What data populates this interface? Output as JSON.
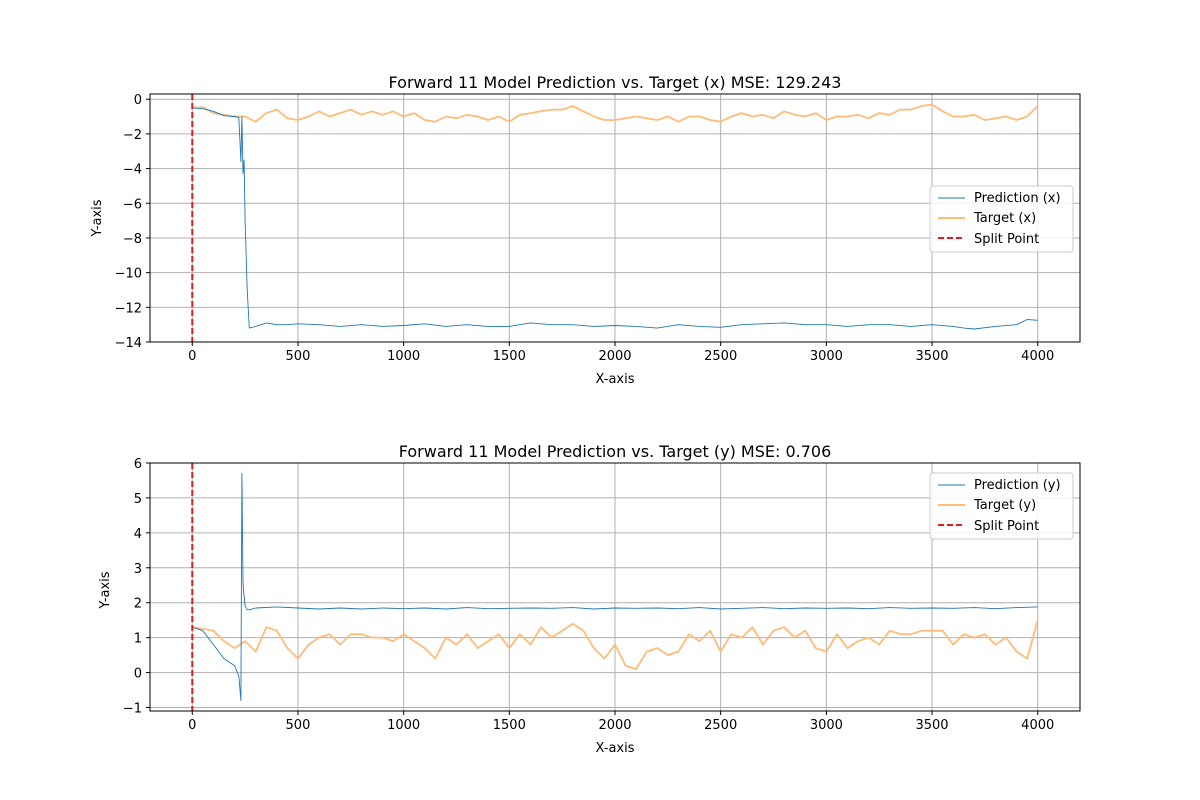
{
  "chart_data": [
    {
      "type": "line",
      "title": "Forward 11 Model Prediction vs. Target (x) MSE: 129.243",
      "xlabel": "X-axis",
      "ylabel": "Y-axis",
      "xlim": [
        -200,
        4200
      ],
      "ylim": [
        -14,
        0.3
      ],
      "xticks": [
        0,
        500,
        1000,
        1500,
        2000,
        2500,
        3000,
        3500,
        4000
      ],
      "yticks": [
        0,
        -2,
        -4,
        -6,
        -8,
        -10,
        -12,
        -14
      ],
      "ytick_labels": [
        "0",
        "−2",
        "−4",
        "−6",
        "−8",
        "−10",
        "−12",
        "−14"
      ],
      "grid": true,
      "legend": "center-right",
      "split_point": 0,
      "series": [
        {
          "name": "Prediction (x)",
          "color": "#1f77b4",
          "x": [
            0,
            50,
            100,
            150,
            200,
            220,
            230,
            235,
            240,
            245,
            250,
            260,
            270,
            300,
            350,
            400,
            450,
            500,
            600,
            700,
            800,
            900,
            1000,
            1100,
            1200,
            1300,
            1400,
            1500,
            1600,
            1700,
            1800,
            1900,
            2000,
            2100,
            2200,
            2300,
            2400,
            2500,
            2600,
            2700,
            2800,
            2900,
            3000,
            3100,
            3200,
            3300,
            3400,
            3500,
            3600,
            3650,
            3700,
            3800,
            3900,
            3950,
            4000
          ],
          "y": [
            -0.5,
            -0.55,
            -0.7,
            -0.95,
            -1.0,
            -1.05,
            -3.6,
            -1.0,
            -4.3,
            -3.5,
            -7.0,
            -11.0,
            -13.2,
            -13.1,
            -12.9,
            -13.0,
            -13.0,
            -12.95,
            -13.0,
            -13.1,
            -13.0,
            -13.1,
            -13.05,
            -12.95,
            -13.1,
            -13.0,
            -13.1,
            -13.1,
            -12.9,
            -13.0,
            -13.0,
            -13.1,
            -13.05,
            -13.1,
            -13.2,
            -13.0,
            -13.1,
            -13.15,
            -13.0,
            -12.95,
            -12.9,
            -13.0,
            -13.0,
            -13.1,
            -13.0,
            -13.0,
            -13.1,
            -13.0,
            -13.1,
            -13.2,
            -13.25,
            -13.1,
            -13.0,
            -12.7,
            -12.75
          ]
        },
        {
          "name": "Target (x)",
          "color": "#ffbb78",
          "x": [
            0,
            50,
            100,
            150,
            200,
            250,
            300,
            350,
            400,
            450,
            500,
            550,
            600,
            650,
            700,
            750,
            800,
            850,
            900,
            950,
            1000,
            1050,
            1100,
            1150,
            1200,
            1250,
            1300,
            1350,
            1400,
            1450,
            1500,
            1550,
            1600,
            1650,
            1700,
            1750,
            1800,
            1850,
            1900,
            1950,
            2000,
            2050,
            2100,
            2150,
            2200,
            2250,
            2300,
            2350,
            2400,
            2450,
            2500,
            2550,
            2600,
            2650,
            2700,
            2750,
            2800,
            2850,
            2900,
            2950,
            3000,
            3050,
            3100,
            3150,
            3200,
            3250,
            3300,
            3350,
            3400,
            3450,
            3500,
            3550,
            3600,
            3650,
            3700,
            3750,
            3800,
            3850,
            3900,
            3950,
            4000
          ],
          "y": [
            -0.5,
            -0.45,
            -0.8,
            -0.9,
            -1.0,
            -1.0,
            -1.3,
            -0.8,
            -0.6,
            -1.1,
            -1.2,
            -1.0,
            -0.7,
            -1.0,
            -0.8,
            -0.6,
            -0.9,
            -0.7,
            -0.9,
            -0.7,
            -1.0,
            -0.8,
            -1.2,
            -1.3,
            -1.0,
            -1.1,
            -0.9,
            -1.0,
            -1.2,
            -1.0,
            -1.3,
            -0.9,
            -0.8,
            -0.7,
            -0.6,
            -0.6,
            -0.4,
            -0.7,
            -1.0,
            -1.2,
            -1.2,
            -1.1,
            -1.0,
            -1.1,
            -1.2,
            -1.0,
            -1.3,
            -1.0,
            -1.0,
            -1.2,
            -1.3,
            -1.0,
            -0.8,
            -1.0,
            -0.9,
            -1.1,
            -0.7,
            -0.9,
            -1.0,
            -0.8,
            -1.2,
            -1.0,
            -1.0,
            -0.9,
            -1.1,
            -0.8,
            -0.9,
            -0.6,
            -0.6,
            -0.4,
            -0.3,
            -0.7,
            -1.0,
            -1.0,
            -0.9,
            -1.2,
            -1.1,
            -1.0,
            -1.2,
            -1.0,
            -0.4
          ]
        }
      ]
    },
    {
      "type": "line",
      "title": "Forward 11 Model Prediction vs. Target (y) MSE: 0.706",
      "xlabel": "X-axis",
      "ylabel": "Y-axis",
      "xlim": [
        -200,
        4200
      ],
      "ylim": [
        -1.1,
        6
      ],
      "xticks": [
        0,
        500,
        1000,
        1500,
        2000,
        2500,
        3000,
        3500,
        4000
      ],
      "yticks": [
        -1,
        0,
        1,
        2,
        3,
        4,
        5,
        6
      ],
      "ytick_labels": [
        "−1",
        "0",
        "1",
        "2",
        "3",
        "4",
        "5",
        "6"
      ],
      "grid": true,
      "legend": "upper-right",
      "split_point": 0,
      "series": [
        {
          "name": "Prediction (y)",
          "color": "#1f77b4",
          "x": [
            0,
            50,
            100,
            150,
            200,
            220,
            230,
            235,
            240,
            243,
            245,
            250,
            260,
            270,
            300,
            400,
            500,
            600,
            700,
            800,
            900,
            1000,
            1100,
            1200,
            1300,
            1400,
            1500,
            1600,
            1700,
            1800,
            1900,
            2000,
            2100,
            2200,
            2300,
            2400,
            2500,
            2600,
            2700,
            2800,
            2900,
            3000,
            3100,
            3200,
            3300,
            3400,
            3500,
            3600,
            3700,
            3800,
            3900,
            4000
          ],
          "y": [
            1.3,
            1.2,
            0.8,
            0.4,
            0.2,
            -0.1,
            -0.8,
            5.7,
            2.6,
            2.3,
            2.2,
            1.9,
            1.8,
            1.8,
            1.85,
            1.88,
            1.85,
            1.82,
            1.85,
            1.82,
            1.85,
            1.83,
            1.85,
            1.82,
            1.86,
            1.83,
            1.84,
            1.85,
            1.84,
            1.86,
            1.82,
            1.85,
            1.84,
            1.85,
            1.83,
            1.86,
            1.82,
            1.84,
            1.86,
            1.83,
            1.85,
            1.84,
            1.85,
            1.83,
            1.86,
            1.84,
            1.85,
            1.84,
            1.86,
            1.83,
            1.86,
            1.88
          ]
        },
        {
          "name": "Target (y)",
          "color": "#ffbb78",
          "x": [
            0,
            50,
            100,
            150,
            200,
            250,
            300,
            350,
            400,
            450,
            500,
            550,
            600,
            650,
            700,
            750,
            800,
            850,
            900,
            950,
            1000,
            1050,
            1100,
            1150,
            1200,
            1250,
            1300,
            1350,
            1400,
            1450,
            1500,
            1550,
            1600,
            1650,
            1700,
            1750,
            1800,
            1850,
            1900,
            1950,
            2000,
            2050,
            2100,
            2150,
            2200,
            2250,
            2300,
            2350,
            2400,
            2450,
            2500,
            2550,
            2600,
            2650,
            2700,
            2750,
            2800,
            2850,
            2900,
            2950,
            3000,
            3050,
            3100,
            3150,
            3200,
            3250,
            3300,
            3350,
            3400,
            3450,
            3500,
            3550,
            3600,
            3650,
            3700,
            3750,
            3800,
            3850,
            3900,
            3950,
            4000
          ],
          "y": [
            1.3,
            1.25,
            1.2,
            0.9,
            0.7,
            0.9,
            0.6,
            1.3,
            1.2,
            0.7,
            0.4,
            0.8,
            1.0,
            1.1,
            0.8,
            1.1,
            1.1,
            1.0,
            1.0,
            0.9,
            1.1,
            0.9,
            0.7,
            0.4,
            1.0,
            0.8,
            1.1,
            0.7,
            0.9,
            1.1,
            0.7,
            1.1,
            0.8,
            1.3,
            1.0,
            1.2,
            1.4,
            1.2,
            0.7,
            0.4,
            0.8,
            0.2,
            0.1,
            0.6,
            0.7,
            0.5,
            0.6,
            1.1,
            0.9,
            1.2,
            0.6,
            1.1,
            1.0,
            1.3,
            0.8,
            1.2,
            1.3,
            1.0,
            1.2,
            0.7,
            0.6,
            1.1,
            0.7,
            0.9,
            1.0,
            0.8,
            1.2,
            1.1,
            1.1,
            1.2,
            1.2,
            1.2,
            0.8,
            1.1,
            1.0,
            1.1,
            0.8,
            1.0,
            0.6,
            0.4,
            1.5
          ]
        }
      ]
    }
  ],
  "split_label": "Split Point",
  "split_color": "#e31a1c",
  "grid_color": "#b0b0b0"
}
